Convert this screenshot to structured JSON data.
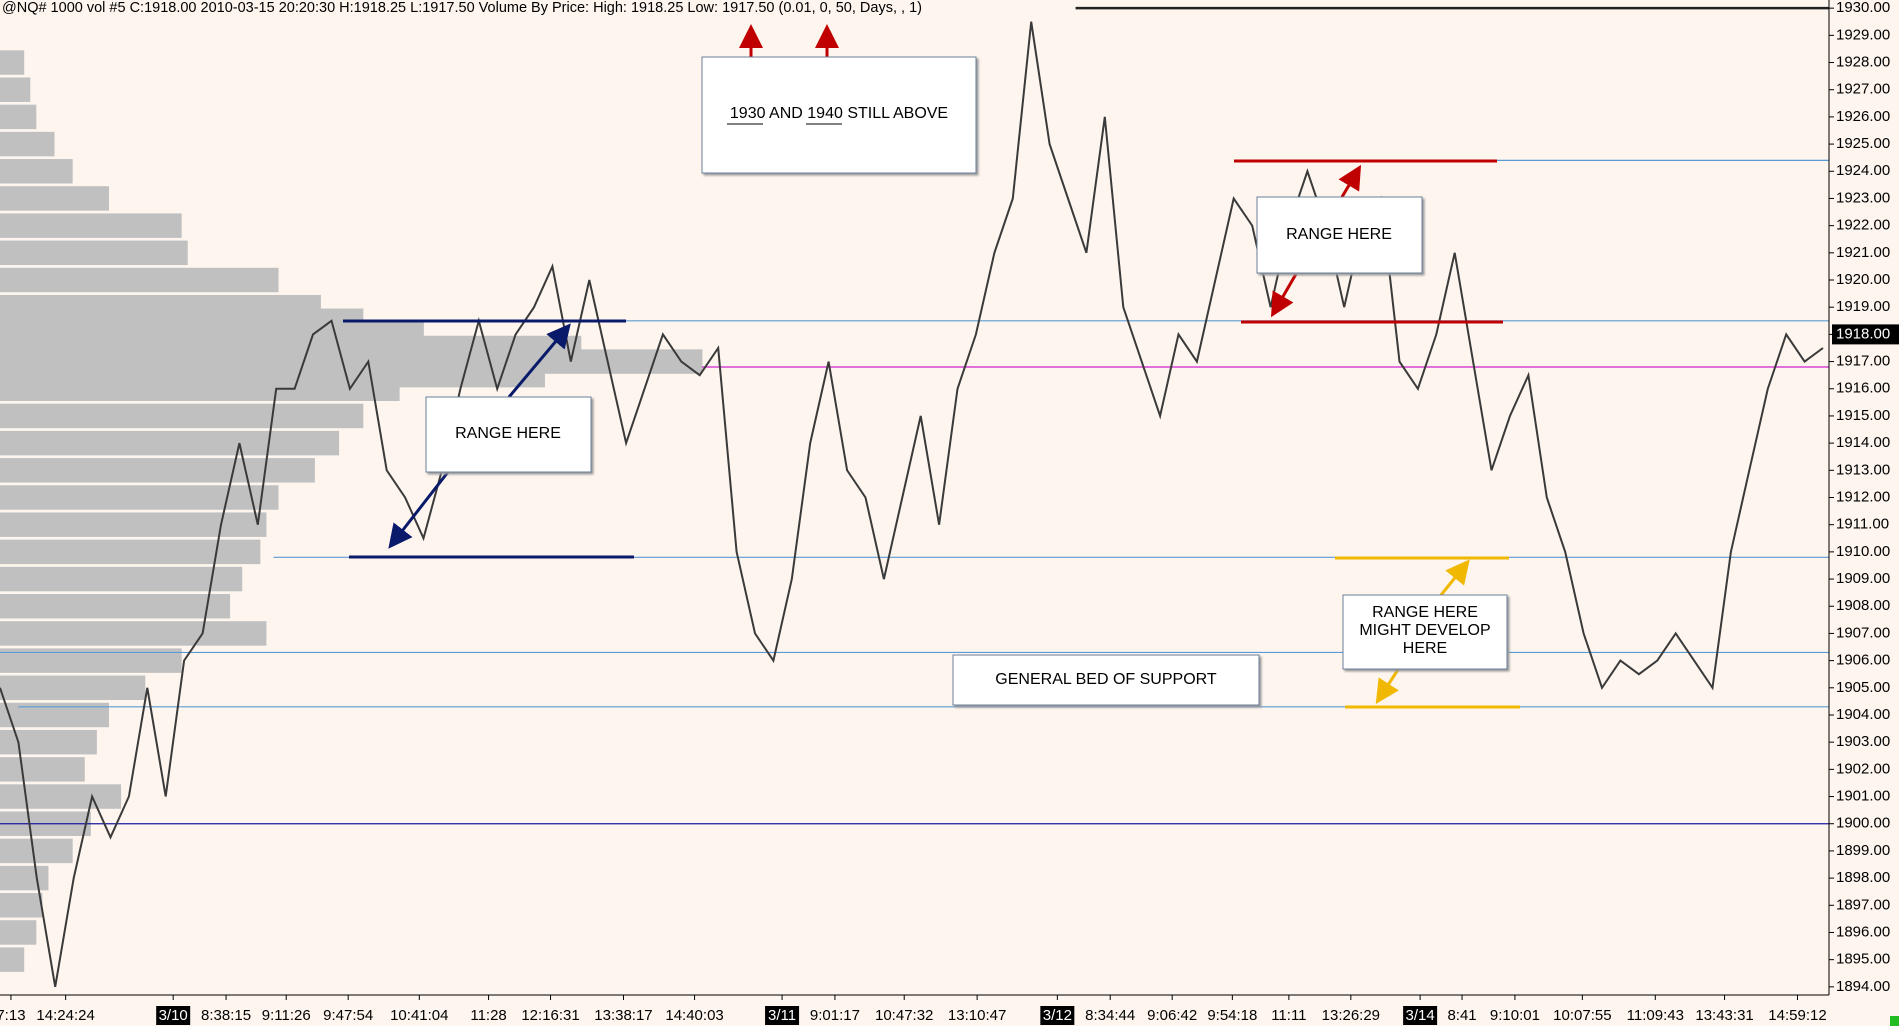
{
  "chart_data": {
    "type": "line",
    "title": "@NQ#  1000 vol  #5  C:1918.00  2010-03-15  20:20:30  H:1918.25  L:1917.50  Volume By Price:  High: 1918.25  Low: 1917.50   (0.01, 0, 50, Days, , 1)",
    "color": "#3a3a3a",
    "values": [
      1905,
      1903,
      1898,
      1894,
      1898,
      1901,
      1899.5,
      1901,
      1905,
      1901,
      1906,
      1907,
      1911,
      1914,
      1911,
      1916,
      1916,
      1918,
      1918.5,
      1916,
      1917,
      1913,
      1912,
      1910.5,
      1913,
      1916,
      1918.5,
      1916,
      1918,
      1919,
      1920.5,
      1917,
      1920,
      1917,
      1914,
      1916,
      1918,
      1917,
      1916.5,
      1917.5,
      1910,
      1907,
      1906,
      1909,
      1914,
      1917,
      1913,
      1912,
      1909,
      1912,
      1915,
      1911,
      1916,
      1918,
      1921,
      1923,
      1929.5,
      1925,
      1923,
      1921,
      1926,
      1919,
      1917,
      1915,
      1918,
      1917,
      1920,
      1923,
      1922,
      1919,
      1922,
      1924,
      1922,
      1919,
      1922,
      1923,
      1917,
      1916,
      1918,
      1921,
      1917,
      1913,
      1915,
      1916.5,
      1912,
      1910,
      1907,
      1905,
      1906,
      1905.5,
      1906,
      1907,
      1906,
      1905,
      1910,
      1913,
      1916,
      1918,
      1917,
      1917.5
    ],
    "xlim": [
      0,
      100
    ],
    "xticks": [
      {
        "value": 0.6,
        "label": "7:13"
      },
      {
        "value": 3.6,
        "label": "14:24:24"
      },
      {
        "value": 9.5,
        "label": "3/10"
      },
      {
        "value": 12.4,
        "label": "8:38:15"
      },
      {
        "value": 15.7,
        "label": "9:11:26"
      },
      {
        "value": 19.1,
        "label": "9:47:54"
      },
      {
        "value": 23,
        "label": "10:41:04"
      },
      {
        "value": 26.8,
        "label": "11:28"
      },
      {
        "value": 30.2,
        "label": "12:16:31"
      },
      {
        "value": 34.2,
        "label": "13:38:17"
      },
      {
        "value": 38.1,
        "label": "14:40:03"
      },
      {
        "value": 42.9,
        "label": "3/11"
      },
      {
        "value": 45.8,
        "label": "9:01:17"
      },
      {
        "value": 49.6,
        "label": "10:47:32"
      },
      {
        "value": 53.6,
        "label": "13:10:47"
      },
      {
        "value": 58,
        "label": "3/12"
      },
      {
        "value": 60.9,
        "label": "8:34:44"
      },
      {
        "value": 64.3,
        "label": "9:06:42"
      },
      {
        "value": 67.6,
        "label": "9:54:18"
      },
      {
        "value": 70.7,
        "label": "11:11"
      },
      {
        "value": 74.1,
        "label": "13:26:29"
      },
      {
        "value": 77.9,
        "label": "3/14"
      },
      {
        "value": 80.2,
        "label": "8:41"
      },
      {
        "value": 83.1,
        "label": "9:10:01"
      },
      {
        "value": 86.8,
        "label": "10:07:55"
      },
      {
        "value": 90.8,
        "label": "11:09:43"
      },
      {
        "value": 94.6,
        "label": "13:43:31"
      },
      {
        "value": 98.6,
        "label": "14:59:12"
      }
    ],
    "ylim": [
      1893.7,
      1930.3
    ],
    "yticks": [
      {
        "value": 1894,
        "label": "1894.00"
      },
      {
        "value": 1895,
        "label": "1895.00"
      },
      {
        "value": 1896,
        "label": "1896.00"
      },
      {
        "value": 1897,
        "label": "1897.00"
      },
      {
        "value": 1898,
        "label": "1898.00"
      },
      {
        "value": 1899,
        "label": "1899.00"
      },
      {
        "value": 1900,
        "label": "1900.00"
      },
      {
        "value": 1901,
        "label": "1901.00"
      },
      {
        "value": 1902,
        "label": "1902.00"
      },
      {
        "value": 1903,
        "label": "1903.00"
      },
      {
        "value": 1904,
        "label": "1904.00"
      },
      {
        "value": 1905,
        "label": "1905.00"
      },
      {
        "value": 1906,
        "label": "1906.00"
      },
      {
        "value": 1907,
        "label": "1907.00"
      },
      {
        "value": 1908,
        "label": "1908.00"
      },
      {
        "value": 1909,
        "label": "1909.00"
      },
      {
        "value": 1910,
        "label": "1910.00"
      },
      {
        "value": 1911,
        "label": "1911.00"
      },
      {
        "value": 1912,
        "label": "1912.00"
      },
      {
        "value": 1913,
        "label": "1913.00"
      },
      {
        "value": 1914,
        "label": "1914.00"
      },
      {
        "value": 1915,
        "label": "1915.00"
      },
      {
        "value": 1916,
        "label": "1916.00"
      },
      {
        "value": 1917,
        "label": "1917.00"
      },
      {
        "value": 1918,
        "label": "1918.00"
      },
      {
        "value": 1919,
        "label": "1919.00"
      },
      {
        "value": 1920,
        "label": "1920.00"
      },
      {
        "value": 1921,
        "label": "1921.00"
      },
      {
        "value": 1922,
        "label": "1922.00"
      },
      {
        "value": 1923,
        "label": "1923.00"
      },
      {
        "value": 1924,
        "label": "1924.00"
      },
      {
        "value": 1925,
        "label": "1925.00"
      },
      {
        "value": 1926,
        "label": "1926.00"
      },
      {
        "value": 1927,
        "label": "1927.00"
      },
      {
        "value": 1928,
        "label": "1928.00"
      },
      {
        "value": 1929,
        "label": "1929.00"
      },
      {
        "value": 1930,
        "label": "1930.00"
      }
    ],
    "last_price": {
      "value": 1918,
      "label": "1918.00"
    },
    "volume_profile": {
      "color": "#c0c0c0",
      "prices": [
        1928,
        1927,
        1926,
        1925,
        1924,
        1923,
        1922,
        1921,
        1920,
        1919,
        1918.5,
        1918,
        1917.5,
        1917,
        1916.5,
        1916,
        1915,
        1914,
        1913,
        1912,
        1911,
        1910,
        1909,
        1908,
        1907,
        1906,
        1905,
        1904,
        1903,
        1902,
        1901,
        1900,
        1899,
        1898,
        1897,
        1896,
        1895
      ],
      "values": [
        20,
        25,
        30,
        45,
        60,
        90,
        150,
        155,
        230,
        265,
        300,
        350,
        480,
        580,
        450,
        330,
        300,
        280,
        260,
        230,
        220,
        215,
        200,
        190,
        220,
        150,
        120,
        90,
        80,
        70,
        100,
        75,
        60,
        40,
        35,
        30,
        20
      ]
    },
    "hlines": [
      {
        "value": 1930,
        "color": "#222222",
        "start": 59
      },
      {
        "value": 1924.4,
        "color": "#5b9bd5",
        "start": 82
      },
      {
        "value": 1918.5,
        "color": "#5b9bd5",
        "start": 31
      },
      {
        "value": 1916.8,
        "color": "#d020d0",
        "start": 38.5
      },
      {
        "value": 1909.8,
        "color": "#5b9bd5",
        "start": 15
      },
      {
        "value": 1906.3,
        "color": "#5b9bd5",
        "start": 0
      },
      {
        "value": 1904.3,
        "color": "#5b9bd5",
        "start": 1
      },
      {
        "value": 1900,
        "color": "#1a1aa0",
        "start": 0
      }
    ],
    "annotations": {
      "above": "1930 AND 1940 STILL ABOVE",
      "range_left": "RANGE HERE",
      "range_right": "RANGE HERE",
      "support": "GENERAL BED OF SUPPORT",
      "develop": [
        "RANGE HERE",
        "MIGHT DEVELOP",
        "HERE"
      ]
    }
  }
}
